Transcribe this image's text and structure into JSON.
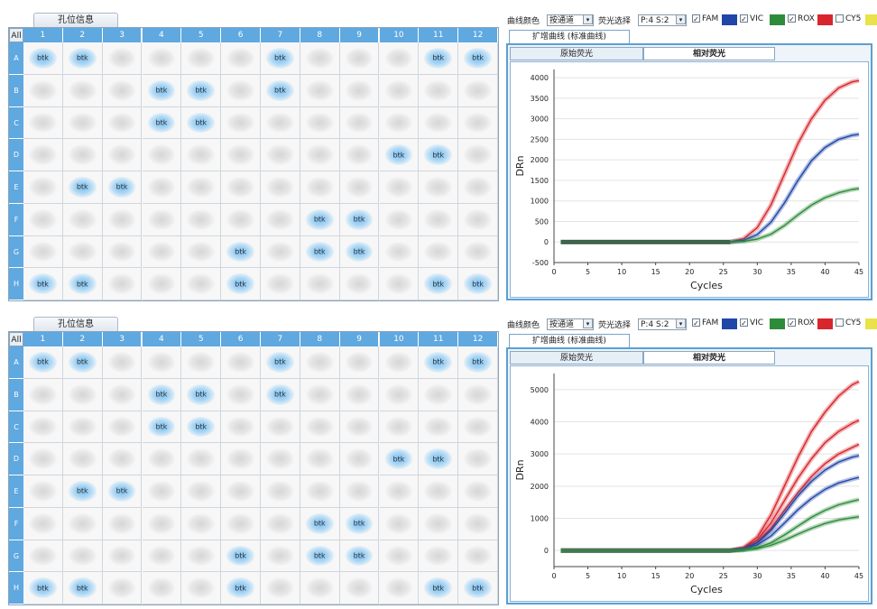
{
  "plate": {
    "tab_label": "孔位信息",
    "all_label": "All",
    "columns": [
      "1",
      "2",
      "3",
      "4",
      "5",
      "6",
      "7",
      "8",
      "9",
      "10",
      "11",
      "12"
    ],
    "rows": [
      "A",
      "B",
      "C",
      "D",
      "E",
      "F",
      "G",
      "H"
    ],
    "target_label": "btk",
    "filled_wells": {
      "A": [
        1,
        2,
        7,
        11,
        12
      ],
      "B": [
        4,
        5,
        7
      ],
      "C": [
        4,
        5
      ],
      "D": [
        10,
        11
      ],
      "E": [
        2,
        3
      ],
      "F": [
        8,
        9
      ],
      "G": [
        6,
        8,
        9
      ],
      "H": [
        1,
        2,
        6,
        11,
        12
      ]
    }
  },
  "controls": {
    "curve_color_label": "曲线颜色",
    "curve_color_value": "按通道",
    "fluor_select_label": "荧光选择",
    "fluor_select_value": "P:4 S:2",
    "dyes": [
      {
        "name": "FAM",
        "checked": true,
        "color": "#2046a8"
      },
      {
        "name": "VIC",
        "checked": true,
        "color": "#2e8b3a"
      },
      {
        "name": "ROX",
        "checked": true,
        "color": "#d8262c"
      },
      {
        "name": "CY5",
        "checked": false,
        "color": "#e8e34a"
      }
    ]
  },
  "tabs": {
    "amplification": "扩增曲线 (标准曲线)",
    "raw": "原始荧光",
    "relative": "相对荧光"
  },
  "chart_data": [
    {
      "type": "line",
      "panel": "top",
      "xlabel": "Cycles",
      "ylabel": "DRn",
      "xlim": [
        0,
        45
      ],
      "ylim": [
        -500,
        4200
      ],
      "xticks": [
        0,
        5,
        10,
        15,
        20,
        25,
        30,
        35,
        40,
        45
      ],
      "yticks": [
        -500,
        0,
        500,
        1000,
        1500,
        2000,
        2500,
        3000,
        3500,
        4000
      ],
      "grid": true,
      "x": [
        1,
        26,
        28,
        30,
        32,
        34,
        36,
        38,
        40,
        42,
        44,
        45
      ],
      "series": [
        {
          "color": "#000000",
          "values": [
            0,
            0,
            0,
            0,
            0,
            0,
            0,
            0,
            0,
            0,
            0,
            0
          ],
          "x_end": 26
        },
        {
          "color": "#d8262c",
          "values": [
            0,
            0,
            80,
            350,
            900,
            1650,
            2400,
            3000,
            3450,
            3750,
            3900,
            3930
          ]
        },
        {
          "color": "#2046a8",
          "values": [
            0,
            0,
            40,
            180,
            480,
            950,
            1500,
            1980,
            2300,
            2500,
            2600,
            2620
          ]
        },
        {
          "color": "#2e8b3a",
          "values": [
            0,
            0,
            15,
            70,
            190,
            400,
            660,
            900,
            1080,
            1200,
            1280,
            1300
          ]
        }
      ]
    },
    {
      "type": "line",
      "panel": "bottom",
      "xlabel": "Cycles",
      "ylabel": "DRn",
      "xlim": [
        0,
        45
      ],
      "ylim": [
        -500,
        5500
      ],
      "xticks": [
        0,
        5,
        10,
        15,
        20,
        25,
        30,
        35,
        40,
        45
      ],
      "yticks": [
        0,
        1000,
        2000,
        3000,
        4000,
        5000
      ],
      "grid": true,
      "x": [
        1,
        26,
        28,
        30,
        32,
        34,
        36,
        38,
        40,
        42,
        44,
        45
      ],
      "series": [
        {
          "color": "#d8262c",
          "values": [
            0,
            0,
            90,
            420,
            1100,
            2000,
            2900,
            3700,
            4300,
            4800,
            5150,
            5250
          ]
        },
        {
          "color": "#d8262c",
          "values": [
            0,
            0,
            70,
            330,
            850,
            1550,
            2250,
            2850,
            3350,
            3700,
            3950,
            4050
          ]
        },
        {
          "color": "#d8262c",
          "values": [
            0,
            0,
            55,
            260,
            680,
            1250,
            1800,
            2300,
            2700,
            3000,
            3200,
            3300
          ]
        },
        {
          "color": "#2046a8",
          "values": [
            0,
            0,
            50,
            240,
            620,
            1150,
            1700,
            2150,
            2500,
            2750,
            2900,
            2950
          ]
        },
        {
          "color": "#2046a8",
          "values": [
            0,
            0,
            35,
            170,
            450,
            850,
            1270,
            1620,
            1900,
            2100,
            2220,
            2270
          ]
        },
        {
          "color": "#2e8b3a",
          "values": [
            0,
            0,
            20,
            90,
            240,
            480,
            760,
            1030,
            1250,
            1420,
            1530,
            1580
          ]
        },
        {
          "color": "#2e8b3a",
          "values": [
            0,
            0,
            12,
            60,
            160,
            320,
            510,
            690,
            840,
            950,
            1020,
            1050
          ]
        }
      ]
    }
  ]
}
